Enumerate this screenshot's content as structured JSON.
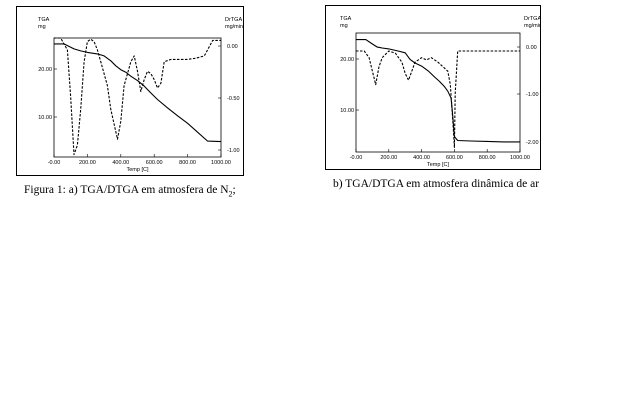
{
  "captions": {
    "a_prefix": "Figura 1: a) TGA/DTGA em atmosfera de N",
    "a_subscript": "2",
    "a_suffix": ";",
    "b": "b) TGA/DTGA em atmosfera dinâmica de ar"
  },
  "chart_data": [
    {
      "id": "a",
      "type": "line",
      "xlabel": "Temp [C]",
      "ylabel_left": "TGA",
      "ylabel_left_unit": "mg",
      "ylabel_right": "DrTGA",
      "ylabel_right_unit": "mg/min",
      "x_ticks": [
        "-0.00",
        "200.00",
        "400.00",
        "600.00",
        "800.00",
        "1000.00"
      ],
      "y_left_ticks": [
        "20.00",
        "10.00"
      ],
      "y_right_ticks": [
        "0.00",
        "-0.50",
        "-1.00"
      ],
      "xlim": [
        0,
        1000
      ],
      "ylim_left": [
        3,
        27
      ],
      "ylim_right": [
        -1.0,
        0.0
      ],
      "grid": false,
      "series": [
        {
          "axis": "left",
          "style": "solid",
          "x": [
            0,
            60,
            90,
            120,
            160,
            200,
            260,
            300,
            340,
            370,
            400,
            430,
            460,
            500,
            540,
            580,
            620,
            680,
            740,
            800,
            850,
            920,
            1000
          ],
          "y": [
            25.8,
            25.8,
            25.3,
            24.8,
            24.4,
            24.1,
            23.8,
            23.4,
            22.4,
            21.4,
            20.6,
            20.1,
            19.3,
            18.4,
            17.3,
            15.9,
            14.6,
            12.9,
            11.3,
            9.8,
            8.3,
            6.2,
            6.1
          ]
        },
        {
          "axis": "right",
          "style": "dashed",
          "x": [
            0,
            40,
            60,
            80,
            100,
            120,
            140,
            160,
            180,
            200,
            220,
            240,
            260,
            280,
            300,
            320,
            340,
            380,
            400,
            420,
            440,
            460,
            480,
            500,
            520,
            540,
            560,
            580,
            600,
            620,
            640,
            660,
            700,
            750,
            800,
            850,
            900,
            950,
            1000
          ],
          "y": [
            0.0,
            0.0,
            -0.05,
            -0.1,
            -0.5,
            -0.98,
            -0.9,
            -0.6,
            -0.2,
            -0.03,
            -0.01,
            -0.03,
            -0.1,
            -0.2,
            -0.3,
            -0.4,
            -0.6,
            -0.85,
            -0.7,
            -0.4,
            -0.3,
            -0.2,
            -0.15,
            -0.28,
            -0.45,
            -0.35,
            -0.28,
            -0.3,
            -0.35,
            -0.42,
            -0.38,
            -0.2,
            -0.18,
            -0.18,
            -0.18,
            -0.17,
            -0.15,
            -0.02,
            -0.02
          ]
        }
      ]
    },
    {
      "id": "b",
      "type": "line",
      "xlabel": "Temp [C]",
      "ylabel_left": "TGA",
      "ylabel_left_unit": "mg",
      "ylabel_right": "DrTGA",
      "ylabel_right_unit": "mg/min",
      "x_ticks": [
        "-0.00",
        "200.00",
        "400.00",
        "600.00",
        "800.00",
        "1000.00"
      ],
      "y_left_ticks": [
        "20.00",
        "10.00"
      ],
      "y_right_ticks": [
        "0.00",
        "-1.00",
        "-2.00"
      ],
      "xlim": [
        0,
        1000
      ],
      "ylim_left": [
        0,
        27
      ],
      "ylim_right": [
        -2.3,
        0.35
      ],
      "grid": false,
      "series": [
        {
          "axis": "left",
          "style": "solid",
          "x": [
            0,
            60,
            100,
            130,
            160,
            200,
            260,
            300,
            330,
            360,
            400,
            440,
            480,
            510,
            540,
            560,
            580,
            590,
            600,
            620,
            700,
            800,
            900,
            1000
          ],
          "y": [
            25.5,
            25.5,
            24.5,
            23.8,
            23.6,
            23.4,
            22.9,
            22.5,
            21.0,
            20.2,
            19.5,
            18.4,
            17.0,
            16.0,
            14.8,
            13.8,
            12.2,
            8.0,
            3.5,
            2.6,
            2.5,
            2.4,
            2.3,
            2.3
          ]
        },
        {
          "axis": "right",
          "style": "dashed",
          "x": [
            0,
            50,
            80,
            100,
            120,
            140,
            160,
            200,
            240,
            260,
            280,
            300,
            320,
            340,
            360,
            400,
            430,
            460,
            500,
            530,
            560,
            575,
            590,
            600,
            605,
            620,
            700,
            800,
            900,
            1000
          ],
          "y": [
            -0.05,
            -0.05,
            -0.2,
            -0.5,
            -0.8,
            -0.4,
            -0.2,
            -0.05,
            -0.1,
            -0.2,
            -0.3,
            -0.55,
            -0.7,
            -0.5,
            -0.3,
            -0.2,
            -0.25,
            -0.2,
            -0.3,
            -0.4,
            -0.5,
            -0.8,
            -1.6,
            -2.2,
            -1.0,
            -0.05,
            -0.05,
            -0.05,
            -0.05,
            -0.05
          ]
        }
      ]
    }
  ]
}
